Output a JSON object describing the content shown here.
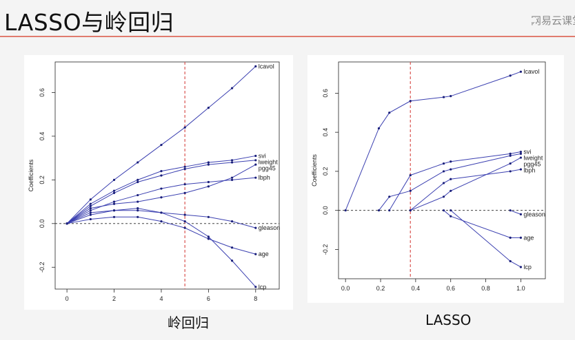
{
  "slide": {
    "title": "LASSO与岭回归",
    "watermark": "网易云课堂",
    "accent_color": "#e07b6e"
  },
  "captions": {
    "ridge": "岭回归",
    "lasso": "LASSO"
  },
  "chart_data": [
    {
      "id": "ridge",
      "type": "line",
      "title": "",
      "xlabel": "",
      "ylabel": "Coefficients",
      "xlim": [
        -0.5,
        9
      ],
      "ylim": [
        -0.3,
        0.74
      ],
      "xticks": [
        0,
        2,
        4,
        6,
        8
      ],
      "yticks": [
        -0.2,
        0.0,
        0.2,
        0.4,
        0.6
      ],
      "ytick_labels": [
        "-0.2",
        "0.0",
        "0.2",
        "0.4",
        "0.6"
      ],
      "zero_line": 0,
      "vline": 5,
      "line_color": "#3a3fb0",
      "vline_color": "#d9534f",
      "series": [
        {
          "name": "lcavol",
          "x": [
            0,
            1,
            2,
            3,
            4,
            5,
            6,
            7,
            8
          ],
          "y": [
            0,
            0.11,
            0.2,
            0.28,
            0.36,
            0.44,
            0.53,
            0.62,
            0.72
          ]
        },
        {
          "name": "svi",
          "x": [
            0,
            1,
            2,
            3,
            4,
            5,
            6,
            7,
            8
          ],
          "y": [
            0,
            0.09,
            0.15,
            0.2,
            0.24,
            0.26,
            0.28,
            0.29,
            0.31
          ]
        },
        {
          "name": "lweight",
          "x": [
            0,
            1,
            2,
            3,
            4,
            5,
            6,
            7,
            8
          ],
          "y": [
            0,
            0.08,
            0.14,
            0.19,
            0.22,
            0.25,
            0.27,
            0.28,
            0.29
          ]
        },
        {
          "name": "pgg45",
          "x": [
            0,
            1,
            2,
            3,
            4,
            5,
            6,
            7,
            8
          ],
          "y": [
            0,
            0.07,
            0.09,
            0.1,
            0.12,
            0.14,
            0.17,
            0.21,
            0.27
          ]
        },
        {
          "name": "lbph",
          "x": [
            0,
            1,
            2,
            3,
            4,
            5,
            6,
            7,
            8
          ],
          "y": [
            0,
            0.06,
            0.1,
            0.13,
            0.16,
            0.18,
            0.19,
            0.2,
            0.21
          ]
        },
        {
          "name": "gleason",
          "x": [
            0,
            1,
            2,
            3,
            4,
            5,
            6,
            7,
            8
          ],
          "y": [
            0,
            0.05,
            0.06,
            0.06,
            0.05,
            0.04,
            0.03,
            0.01,
            -0.02
          ]
        },
        {
          "name": "age",
          "x": [
            0,
            1,
            2,
            3,
            4,
            5,
            6,
            7,
            8
          ],
          "y": [
            0,
            0.02,
            0.03,
            0.03,
            0.01,
            -0.02,
            -0.07,
            -0.11,
            -0.14
          ]
        },
        {
          "name": "lcp",
          "x": [
            0,
            1,
            2,
            3,
            4,
            5,
            6,
            7,
            8
          ],
          "y": [
            0,
            0.04,
            0.06,
            0.07,
            0.05,
            0.01,
            -0.06,
            -0.17,
            -0.29
          ]
        }
      ]
    },
    {
      "id": "lasso",
      "type": "line",
      "title": "",
      "xlabel": "",
      "ylabel": "Coefficients",
      "xlim": [
        -0.04,
        1.14
      ],
      "ylim": [
        -0.35,
        0.76
      ],
      "xticks": [
        0,
        0.2,
        0.4,
        0.6,
        0.8,
        1.0
      ],
      "xtick_labels": [
        "0.0",
        "0.2",
        "0.4",
        "0.6",
        "0.8",
        "1.0"
      ],
      "yticks": [
        -0.2,
        0.0,
        0.2,
        0.4,
        0.6
      ],
      "ytick_labels": [
        "-0.2",
        "0.0",
        "0.2",
        "0.4",
        "0.6"
      ],
      "zero_line": 0,
      "vline": 0.37,
      "line_color": "#3a3fb0",
      "vline_color": "#d9534f",
      "series": [
        {
          "name": "lcavol",
          "x": [
            0,
            0.19,
            0.25,
            0.37,
            0.56,
            0.6,
            0.94,
            1.0
          ],
          "y": [
            0,
            0.42,
            0.5,
            0.56,
            0.58,
            0.585,
            0.69,
            0.71
          ]
        },
        {
          "name": "svi",
          "x": [
            0.25,
            0.37,
            0.56,
            0.6,
            0.94,
            1.0
          ],
          "y": [
            0,
            0.18,
            0.24,
            0.25,
            0.29,
            0.3
          ]
        },
        {
          "name": "lweight",
          "x": [
            0.19,
            0.25,
            0.37,
            0.56,
            0.6,
            0.94,
            1.0
          ],
          "y": [
            0,
            0.07,
            0.1,
            0.2,
            0.21,
            0.28,
            0.29
          ]
        },
        {
          "name": "pgg45",
          "x": [
            0.37,
            0.56,
            0.6,
            0.94,
            1.0
          ],
          "y": [
            0,
            0.07,
            0.1,
            0.24,
            0.27
          ]
        },
        {
          "name": "lbph",
          "x": [
            0.37,
            0.56,
            0.6,
            0.94,
            1.0
          ],
          "y": [
            0,
            0.14,
            0.16,
            0.2,
            0.21
          ]
        },
        {
          "name": "gleason",
          "x": [
            0.94,
            1.0
          ],
          "y": [
            0,
            -0.02
          ]
        },
        {
          "name": "age",
          "x": [
            0.56,
            0.6,
            0.94,
            1.0
          ],
          "y": [
            0,
            -0.03,
            -0.14,
            -0.14
          ]
        },
        {
          "name": "lcp",
          "x": [
            0.6,
            0.94,
            1.0
          ],
          "y": [
            0,
            -0.26,
            -0.29
          ]
        }
      ]
    }
  ]
}
